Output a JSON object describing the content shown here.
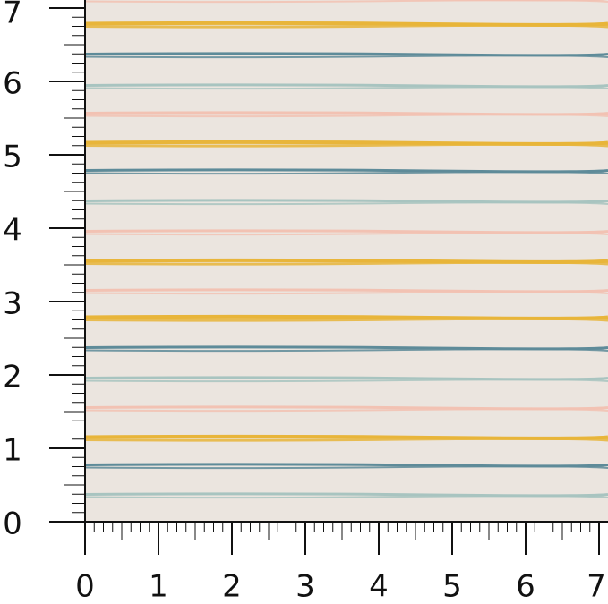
{
  "ruler": {
    "y_labels": [
      "0",
      "1",
      "2",
      "3",
      "4",
      "5",
      "6",
      "7"
    ],
    "x_labels": [
      "0",
      "1",
      "2",
      "3",
      "4",
      "5",
      "6",
      "7"
    ]
  }
}
